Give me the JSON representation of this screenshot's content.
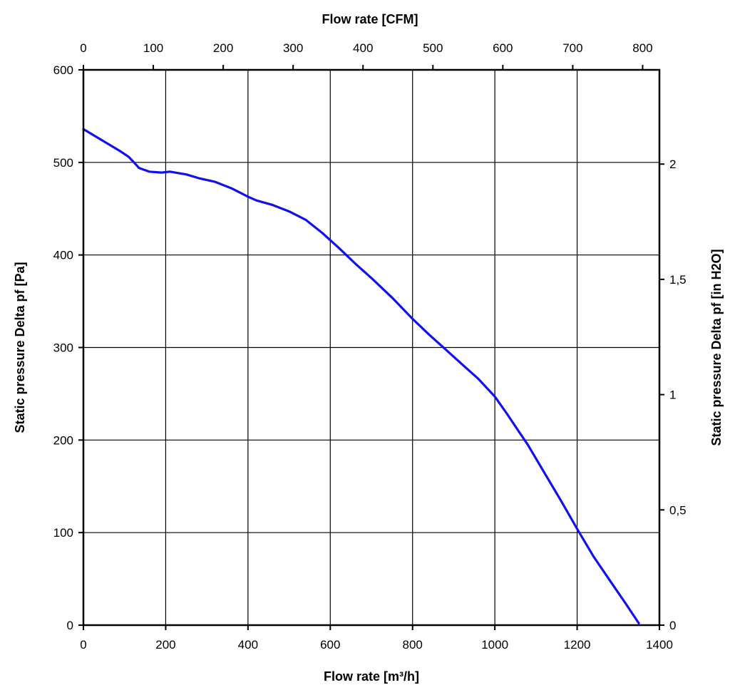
{
  "chart_data": {
    "type": "line",
    "x_bottom": {
      "label": "Flow rate [m³/h]",
      "range": [
        0,
        1400
      ],
      "ticks": [
        0,
        200,
        400,
        600,
        800,
        1000,
        1200,
        1400
      ]
    },
    "x_top": {
      "label": "Flow rate [CFM]",
      "range_m3h_per_cfm": 1.699,
      "ticks": [
        0,
        100,
        200,
        300,
        400,
        500,
        600,
        700,
        800
      ]
    },
    "y_left": {
      "label": "Static pressure Delta pf [Pa]",
      "range": [
        0,
        600
      ],
      "ticks": [
        0,
        100,
        200,
        300,
        400,
        500,
        600
      ]
    },
    "y_right": {
      "label": "Static pressure Delta pf [in H2O]",
      "pa_per_unit": 249.09,
      "ticks": [
        "0",
        "0,5",
        "1",
        "1,5",
        "2"
      ],
      "tick_values": [
        0,
        0.5,
        1,
        1.5,
        2
      ]
    },
    "grid": true,
    "series": [
      {
        "color": "#1010ee",
        "x": [
          0,
          30,
          60,
          90,
          110,
          125,
          135,
          160,
          190,
          210,
          250,
          280,
          320,
          360,
          400,
          420,
          460,
          500,
          540,
          580,
          620,
          660,
          700,
          750,
          800,
          840,
          880,
          920,
          960,
          1000,
          1030,
          1060,
          1080,
          1120,
          1160,
          1200,
          1240,
          1280,
          1320,
          1350
        ],
        "y": [
          536,
          528,
          520,
          512,
          506,
          499,
          494,
          490,
          489,
          490,
          487,
          483,
          479,
          472,
          463,
          459,
          454,
          447,
          438,
          424,
          408,
          391,
          375,
          354,
          331,
          314,
          298,
          282,
          266,
          247,
          228,
          208,
          195,
          165,
          135,
          104,
          74,
          48,
          22,
          2
        ]
      }
    ]
  }
}
